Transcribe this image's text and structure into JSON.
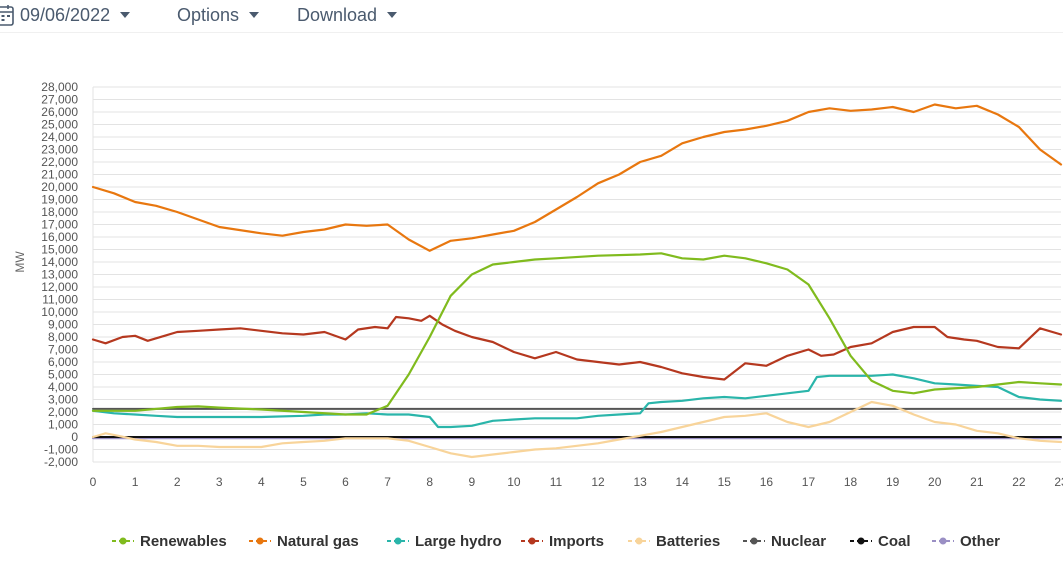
{
  "toolbar": {
    "date": "09/06/2022",
    "options_label": "Options",
    "download_label": "Download",
    "text_color": "#4a5a6e"
  },
  "chart_data": {
    "type": "line",
    "ylabel": "MW",
    "xlabel": "",
    "ylim": [
      -2000,
      28000
    ],
    "xlim": [
      0,
      23
    ],
    "y_ticks": [
      "28,000",
      "27,000",
      "26,000",
      "25,000",
      "24,000",
      "23,000",
      "22,000",
      "21,000",
      "20,000",
      "19,000",
      "18,000",
      "17,000",
      "16,000",
      "15,000",
      "14,000",
      "13,000",
      "12,000",
      "11,000",
      "10,000",
      "9,000",
      "8,000",
      "7,000",
      "6,000",
      "5,000",
      "4,000",
      "3,000",
      "2,000",
      "1,000",
      "0",
      "-1,000",
      "-2,000"
    ],
    "y_tick_values": [
      28000,
      27000,
      26000,
      25000,
      24000,
      23000,
      22000,
      21000,
      20000,
      19000,
      18000,
      17000,
      16000,
      15000,
      14000,
      13000,
      12000,
      11000,
      10000,
      9000,
      8000,
      7000,
      6000,
      5000,
      4000,
      3000,
      2000,
      1000,
      0,
      -1000,
      -2000
    ],
    "x_ticks": [
      "0",
      "1",
      "2",
      "3",
      "4",
      "5",
      "6",
      "7",
      "8",
      "9",
      "10",
      "11",
      "12",
      "13",
      "14",
      "15",
      "16",
      "17",
      "18",
      "19",
      "20",
      "21",
      "22",
      "23"
    ],
    "x_tick_values": [
      0,
      1,
      2,
      3,
      4,
      5,
      6,
      7,
      8,
      9,
      10,
      11,
      12,
      13,
      14,
      15,
      16,
      17,
      18,
      19,
      20,
      21,
      22,
      23
    ],
    "grid": true,
    "legend_position": "bottom",
    "series": [
      {
        "name": "Renewables",
        "color": "#80bb1e",
        "x": [
          0,
          1,
          2,
          2.5,
          3,
          4,
          5,
          6,
          6.5,
          7,
          7.5,
          8,
          8.5,
          9,
          9.5,
          10,
          10.5,
          11,
          12,
          13,
          13.5,
          14,
          14.5,
          15,
          15.5,
          16,
          16.5,
          17,
          17.5,
          18,
          18.5,
          19,
          19.5,
          20,
          21,
          21.5,
          22,
          22.5,
          23
        ],
        "y": [
          2100,
          2100,
          2400,
          2450,
          2350,
          2200,
          2000,
          1800,
          1800,
          2500,
          5000,
          8000,
          11300,
          13000,
          13800,
          14000,
          14200,
          14300,
          14500,
          14600,
          14700,
          14300,
          14200,
          14500,
          14300,
          13900,
          13400,
          12200,
          9500,
          6500,
          4500,
          3700,
          3500,
          3800,
          4000,
          4200,
          4400,
          4300,
          4200
        ]
      },
      {
        "name": "Natural gas",
        "color": "#e8770f",
        "x": [
          0,
          0.5,
          1,
          1.5,
          2,
          3,
          4,
          4.5,
          5,
          5.5,
          6,
          6.5,
          7,
          7.5,
          8,
          8.5,
          9,
          9.5,
          10,
          10.5,
          11,
          11.5,
          12,
          12.5,
          13,
          13.5,
          14,
          14.5,
          15,
          15.5,
          16,
          16.5,
          17,
          17.5,
          18,
          18.5,
          19,
          19.5,
          20,
          20.5,
          21,
          21.5,
          22,
          22.5,
          23
        ],
        "y": [
          20000,
          19500,
          18800,
          18500,
          18000,
          16800,
          16300,
          16100,
          16400,
          16600,
          17000,
          16900,
          17000,
          15800,
          14900,
          15700,
          15900,
          16200,
          16500,
          17200,
          18200,
          19200,
          20300,
          21000,
          22000,
          22500,
          23500,
          24000,
          24400,
          24600,
          24900,
          25300,
          26000,
          26300,
          26100,
          26200,
          26400,
          26000,
          26600,
          26300,
          26500,
          25800,
          24800,
          23000,
          21800
        ]
      },
      {
        "name": "Large hydro",
        "color": "#2ab5aa",
        "x": [
          0,
          0.5,
          1,
          1.5,
          2,
          3,
          4,
          5,
          5.5,
          6,
          6.5,
          7,
          7.5,
          8,
          8.2,
          8.5,
          9,
          9.5,
          10,
          10.5,
          11,
          11.5,
          12,
          12.5,
          13,
          13.2,
          13.5,
          14,
          14.5,
          15,
          15.5,
          16,
          16.5,
          17,
          17.2,
          17.5,
          18,
          18.5,
          19,
          19.5,
          20,
          20.5,
          21,
          21.5,
          22,
          22.5,
          23
        ],
        "y": [
          2100,
          1900,
          1800,
          1700,
          1600,
          1600,
          1600,
          1700,
          1800,
          1800,
          1900,
          1800,
          1800,
          1600,
          800,
          800,
          900,
          1300,
          1400,
          1500,
          1500,
          1500,
          1700,
          1800,
          1900,
          2700,
          2800,
          2900,
          3100,
          3200,
          3100,
          3300,
          3500,
          3700,
          4800,
          4900,
          4900,
          4900,
          5000,
          4700,
          4300,
          4200,
          4100,
          4000,
          3200,
          3000,
          2900
        ]
      },
      {
        "name": "Imports",
        "color": "#b5381f",
        "x": [
          0,
          0.3,
          0.7,
          1,
          1.3,
          1.7,
          2,
          2.5,
          3,
          3.5,
          4,
          4.5,
          5,
          5.5,
          6,
          6.3,
          6.7,
          7,
          7.2,
          7.5,
          7.8,
          8,
          8.3,
          8.6,
          9,
          9.5,
          10,
          10.5,
          11,
          11.5,
          12,
          12.5,
          13,
          13.5,
          14,
          14.5,
          15,
          15.5,
          16,
          16.5,
          17,
          17.3,
          17.6,
          18,
          18.5,
          19,
          19.5,
          20,
          20.3,
          20.7,
          21,
          21.5,
          22,
          22.5,
          23
        ],
        "y": [
          7800,
          7500,
          8000,
          8100,
          7700,
          8100,
          8400,
          8500,
          8600,
          8700,
          8500,
          8300,
          8200,
          8400,
          7800,
          8600,
          8800,
          8700,
          9600,
          9500,
          9300,
          9700,
          9000,
          8500,
          8000,
          7600,
          6800,
          6300,
          6800,
          6200,
          6000,
          5800,
          6000,
          5600,
          5100,
          4800,
          4600,
          5900,
          5700,
          6500,
          7000,
          6500,
          6600,
          7200,
          7500,
          8400,
          8800,
          8800,
          8000,
          7800,
          7700,
          7200,
          7100,
          8700,
          8200
        ]
      },
      {
        "name": "Batteries",
        "color": "#f8d49a",
        "x": [
          0,
          0.3,
          0.6,
          1,
          1.5,
          2,
          2.5,
          3,
          3.5,
          4,
          4.5,
          5,
          5.5,
          6,
          6.5,
          7,
          7.5,
          8,
          8.5,
          9,
          9.5,
          10,
          10.5,
          11,
          11.5,
          12,
          12.5,
          13,
          13.5,
          14,
          14.5,
          15,
          15.5,
          16,
          16.5,
          17,
          17.5,
          18,
          18.5,
          19,
          19.5,
          20,
          20.5,
          21,
          21.5,
          22,
          22.5,
          23
        ],
        "y": [
          0,
          300,
          100,
          -200,
          -400,
          -700,
          -700,
          -800,
          -800,
          -800,
          -500,
          -400,
          -300,
          -100,
          -100,
          -100,
          -300,
          -800,
          -1300,
          -1600,
          -1400,
          -1200,
          -1000,
          -900,
          -700,
          -500,
          -200,
          100,
          400,
          800,
          1200,
          1600,
          1700,
          1900,
          1200,
          800,
          1200,
          2000,
          2800,
          2500,
          1800,
          1200,
          1000,
          500,
          300,
          -100,
          -300,
          -400
        ]
      },
      {
        "name": "Nuclear",
        "color": "#555555",
        "x": [
          0,
          23
        ],
        "y": [
          2250,
          2250
        ]
      },
      {
        "name": "Coal",
        "color": "#111111",
        "x": [
          0,
          23
        ],
        "y": [
          0,
          0
        ]
      },
      {
        "name": "Other",
        "color": "#9a8fc4",
        "x": [
          0,
          23
        ],
        "y": [
          -100,
          -100
        ]
      }
    ]
  }
}
